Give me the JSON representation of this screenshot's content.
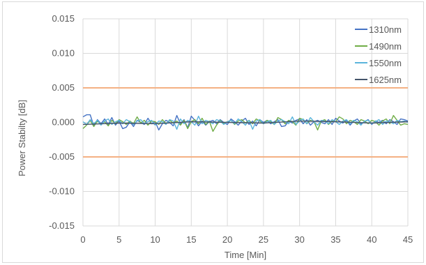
{
  "chart_data": {
    "type": "line",
    "title": "",
    "xlabel": "Time [Min]",
    "ylabel": "Power Stabilty [dB]",
    "xlim": [
      0,
      45
    ],
    "ylim": [
      -0.015,
      0.015
    ],
    "x_ticks": [
      0,
      5,
      10,
      15,
      20,
      25,
      30,
      35,
      40,
      45
    ],
    "y_ticks": [
      0.015,
      0.01,
      0.005,
      0.0,
      -0.005,
      -0.01,
      -0.015
    ],
    "x_tick_labels": [
      "0",
      "5",
      "10",
      "15",
      "20",
      "25",
      "30",
      "35",
      "40",
      "45"
    ],
    "y_tick_labels": [
      "0.015",
      "0.010",
      "0.005",
      "0.000",
      "-0.005",
      "-0.010",
      "-0.015"
    ],
    "grid": true,
    "legend_position": "top-right",
    "limit_lines": [
      {
        "y": 0.005,
        "color": "#f4b183"
      },
      {
        "y": -0.005,
        "color": "#f4b183"
      }
    ],
    "series": [
      {
        "name": "1310nm",
        "color": "#4472c4",
        "x": [
          0,
          0.5,
          1,
          1.5,
          2,
          2.5,
          3,
          3.5,
          4,
          4.5,
          5,
          5.5,
          6,
          6.5,
          7,
          7.5,
          8,
          8.5,
          9,
          9.5,
          10,
          10.5,
          11,
          11.5,
          12,
          12.5,
          13,
          13.5,
          14,
          14.5,
          15,
          15.5,
          16,
          16.5,
          17,
          17.5,
          18,
          18.5,
          19,
          19.5,
          20,
          20.5,
          21,
          21.5,
          22,
          22.5,
          23,
          23.5,
          24,
          24.5,
          25,
          25.5,
          26,
          26.5,
          27,
          27.5,
          28,
          28.5,
          29,
          29.5,
          30,
          30.5,
          31,
          31.5,
          32,
          32.5,
          33,
          33.5,
          34,
          34.5,
          35,
          35.5,
          36,
          36.5,
          37,
          37.5,
          38,
          38.5,
          39,
          39.5,
          40,
          40.5,
          41,
          41.5,
          42,
          42.5,
          43,
          43.5,
          44,
          44.5,
          45
        ],
        "y": [
          0.0008,
          0.0011,
          0.0011,
          -0.0005,
          0.0004,
          -0.0002,
          0.0005,
          -0.0003,
          0.0007,
          -0.0004,
          0.0002,
          -0.0009,
          -0.0007,
          0.0001,
          -0.0006,
          0.0003,
          0.0,
          -0.0003,
          0.0006,
          -0.0002,
          0.0001,
          -0.0011,
          -0.0002,
          0.0003,
          0.0,
          -0.0005,
          0.001,
          -0.0002,
          0.0004,
          -0.0008,
          0.0009,
          0.0003,
          -0.0005,
          0.0002,
          -0.0004,
          0.0001,
          0.0003,
          -0.0002,
          0.0004,
          0.0,
          -0.0003,
          0.0005,
          0.0001,
          -0.0004,
          0.0002,
          0.0006,
          -0.0003,
          0.0002,
          -0.0005,
          0.0004,
          0.0,
          0.0003,
          -0.0002,
          0.0001,
          0.0004,
          -0.0006,
          -0.0005,
          0.0002,
          -0.0001,
          0.0003,
          0.0005,
          -0.0002,
          0.0004,
          -0.0004,
          0.0001,
          0.0003,
          0.0,
          -0.0002,
          0.0004,
          -0.0003,
          0.0006,
          0.0002,
          -0.0001,
          0.0003,
          -0.0004,
          0.0002,
          0.0005,
          -0.0002,
          0.0001,
          0.0004,
          -0.0003,
          0.0002,
          0.0,
          0.0003,
          -0.0002,
          0.0004,
          0.0001,
          -0.0003,
          0.0005,
          0.0004,
          0.0002
        ]
      },
      {
        "name": "1490nm",
        "color": "#70ad47",
        "x": [
          0,
          0.5,
          1,
          1.5,
          2,
          2.5,
          3,
          3.5,
          4,
          4.5,
          5,
          5.5,
          6,
          6.5,
          7,
          7.5,
          8,
          8.5,
          9,
          9.5,
          10,
          10.5,
          11,
          11.5,
          12,
          12.5,
          13,
          13.5,
          14,
          14.5,
          15,
          15.5,
          16,
          16.5,
          17,
          17.5,
          18,
          18.5,
          19,
          19.5,
          20,
          20.5,
          21,
          21.5,
          22,
          22.5,
          23,
          23.5,
          24,
          24.5,
          25,
          25.5,
          26,
          26.5,
          27,
          27.5,
          28,
          28.5,
          29,
          29.5,
          30,
          30.5,
          31,
          31.5,
          32,
          32.5,
          33,
          33.5,
          34,
          34.5,
          35,
          35.5,
          36,
          36.5,
          37,
          37.5,
          38,
          38.5,
          39,
          39.5,
          40,
          40.5,
          41,
          41.5,
          42,
          42.5,
          43,
          43.5,
          44,
          44.5,
          45
        ],
        "y": [
          -0.0009,
          -0.0004,
          0.0003,
          -0.0006,
          0.0002,
          -0.0003,
          0.0001,
          -0.0005,
          0.0003,
          -0.0002,
          0.0004,
          0.0001,
          -0.0003,
          0.0002,
          -0.0002,
          0.0008,
          -0.0001,
          0.0003,
          -0.0004,
          0.0002,
          0.0001,
          -0.0003,
          0.0004,
          -0.0002,
          0.0003,
          -0.0001,
          0.0002,
          -0.0004,
          0.0003,
          -0.0009,
          0.0001,
          0.0004,
          -0.0002,
          0.0006,
          -0.0003,
          0.0002,
          -0.0013,
          -0.0004,
          0.0003,
          -0.0002,
          0.0001,
          0.0003,
          -0.0003,
          0.0002,
          0.0004,
          -0.0001,
          0.0003,
          -0.0002,
          0.0005,
          0.0002,
          -0.0002,
          0.0003,
          0.0001,
          -0.0003,
          0.0007,
          0.0004,
          -0.0002,
          0.0003,
          0.0001,
          -0.0004,
          0.0006,
          0.0004,
          -0.0002,
          0.0003,
          0.0001,
          -0.0011,
          0.0002,
          0.0004,
          -0.0003,
          0.0002,
          0.0001,
          0.0008,
          0.0005,
          -0.0002,
          0.0003,
          0.0001,
          -0.0003,
          0.0004,
          0.0002,
          -0.0002,
          0.0003,
          0.0001,
          -0.0004,
          0.0002,
          0.0005,
          -0.0002,
          0.001,
          0.0003,
          -0.0004,
          -0.0002,
          -0.0003
        ]
      },
      {
        "name": "1550nm",
        "color": "#5ab4dc",
        "x": [
          0,
          0.5,
          1,
          1.5,
          2,
          2.5,
          3,
          3.5,
          4,
          4.5,
          5,
          5.5,
          6,
          6.5,
          7,
          7.5,
          8,
          8.5,
          9,
          9.5,
          10,
          10.5,
          11,
          11.5,
          12,
          12.5,
          13,
          13.5,
          14,
          14.5,
          15,
          15.5,
          16,
          16.5,
          17,
          17.5,
          18,
          18.5,
          19,
          19.5,
          20,
          20.5,
          21,
          21.5,
          22,
          22.5,
          23,
          23.5,
          24,
          24.5,
          25,
          25.5,
          26,
          26.5,
          27,
          27.5,
          28,
          28.5,
          29,
          29.5,
          30,
          30.5,
          31,
          31.5,
          32,
          32.5,
          33,
          33.5,
          34,
          34.5,
          35,
          35.5,
          36,
          36.5,
          37,
          37.5,
          38,
          38.5,
          39,
          39.5,
          40,
          40.5,
          41,
          41.5,
          42,
          42.5,
          43,
          43.5,
          44,
          44.5,
          45
        ],
        "y": [
          0.0001,
          -0.0003,
          0.0004,
          -0.0002,
          0.0003,
          -0.0004,
          0.0002,
          0.0005,
          -0.0003,
          0.0001,
          0.0003,
          -0.0002,
          0.0004,
          0.0001,
          -0.0003,
          0.0002,
          0.0004,
          -0.0002,
          0.0001,
          0.0003,
          -0.0004,
          0.0002,
          0.0001,
          -0.0003,
          0.0004,
          0.0002,
          -0.001,
          0.0005,
          -0.0002,
          0.0003,
          0.0001,
          -0.0004,
          0.0009,
          -0.0002,
          0.0003,
          0.0001,
          -0.0002,
          0.0004,
          0.0002,
          -0.0003,
          0.0001,
          0.0003,
          -0.0002,
          0.0005,
          0.0001,
          -0.0004,
          0.0003,
          -0.001,
          0.0002,
          0.0004,
          -0.0002,
          0.0001,
          0.0003,
          -0.0003,
          0.0002,
          0.0004,
          0.0001,
          -0.0002,
          0.0008,
          -0.0003,
          0.0002,
          0.0005,
          -0.0002,
          0.0007,
          0.0001,
          -0.0004,
          0.0003,
          0.0002,
          -0.0002,
          0.0004,
          0.0001,
          -0.0003,
          0.0002,
          0.0004,
          -0.0002,
          0.0003,
          0.0001,
          -0.0004,
          0.0002,
          0.0003,
          -0.0002,
          0.0001,
          0.0004,
          -0.0003,
          0.0002,
          0.0001,
          -0.0002,
          0.0003,
          0.0001,
          0.0002,
          0.0
        ]
      },
      {
        "name": "1625nm",
        "color": "#44546a",
        "x": [
          0,
          5,
          10,
          15,
          20,
          25,
          30,
          35,
          40,
          45
        ],
        "y": [
          -0.0003,
          -0.0001,
          -0.0002,
          0.0001,
          0.0,
          -0.0001,
          0.0002,
          0.0001,
          -0.0001,
          0.0001
        ]
      }
    ]
  }
}
